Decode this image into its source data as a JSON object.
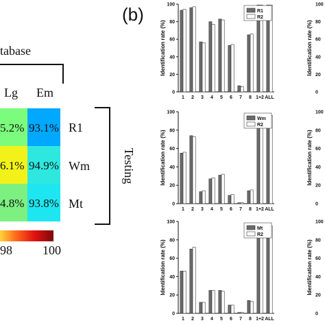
{
  "panel_b_label": "(b)",
  "heatmap": {
    "database_label": "tabase",
    "testing_label": "Testing",
    "columns": [
      "Lg",
      "Em"
    ],
    "rows": [
      "R1",
      "Wm",
      "Mt"
    ],
    "cells": [
      [
        "5.2%",
        "93.1%"
      ],
      [
        "6.1%",
        "94.9%"
      ],
      [
        "4.8%",
        "93.8%"
      ]
    ],
    "cell_colors": [
      [
        "#7CFC7C",
        "#00A8FF"
      ],
      [
        "#F2F21A",
        "#2EE8E0"
      ],
      [
        "#7CF080",
        "#1EE6F0"
      ]
    ],
    "colorbar": {
      "tick_left": "98",
      "tick_right": "100"
    }
  },
  "chart_data": [
    {
      "type": "bar",
      "categories": [
        "1",
        "2",
        "3",
        "4",
        "5",
        "6",
        "7",
        "8",
        "1+2",
        "ALL"
      ],
      "series": [
        {
          "name": "R1",
          "values": [
            93,
            96,
            57,
            80,
            83,
            53,
            7,
            65,
            99,
            99
          ]
        },
        {
          "name": "R2",
          "values": [
            94,
            97,
            56,
            77,
            82,
            54,
            6,
            66,
            99,
            99
          ]
        }
      ],
      "ylabel": "Identification rate (%)",
      "ylim": [
        0,
        100
      ],
      "yticks": [
        "0",
        "20",
        "40",
        "60",
        "80",
        "100"
      ]
    },
    {
      "type": "bar",
      "categories": [
        "1",
        "2",
        "3",
        "4",
        "5",
        "6",
        "7",
        "8",
        "1+2",
        "ALL"
      ],
      "series": [
        {
          "name": "Wm",
          "values": [
            55,
            74,
            13,
            27,
            31,
            9,
            1,
            14,
            92,
            95
          ]
        },
        {
          "name": "R2",
          "values": [
            56,
            73,
            14,
            28,
            32,
            10,
            1,
            15,
            93,
            96
          ]
        }
      ],
      "ylabel": "Identification rate (%)",
      "ylim": [
        0,
        100
      ],
      "yticks": [
        "0",
        "20",
        "40",
        "60",
        "80",
        "100"
      ]
    },
    {
      "type": "bar",
      "categories": [
        "1",
        "2",
        "3",
        "4",
        "5",
        "6",
        "7",
        "8",
        "1+2",
        "ALL"
      ],
      "series": [
        {
          "name": "Mt",
          "values": [
            46,
            70,
            12,
            25,
            25,
            9,
            1,
            14,
            88,
            94
          ]
        },
        {
          "name": "R2",
          "values": [
            46,
            72,
            12,
            25,
            24,
            9,
            1,
            13,
            90,
            95
          ]
        }
      ],
      "ylabel": "Identification rate (%)",
      "ylim": [
        0,
        100
      ],
      "yticks": [
        "0",
        "20",
        "40",
        "60",
        "80",
        "100"
      ]
    }
  ],
  "right_edge_ticks": [
    "100",
    "80",
    "60",
    "40",
    "20",
    "0"
  ],
  "right_edge_ylabel": "Identification rate (%)"
}
